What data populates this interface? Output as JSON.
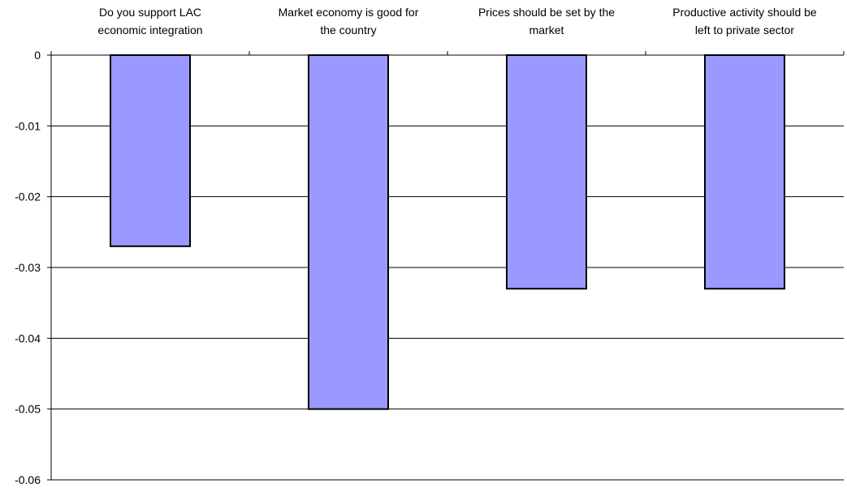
{
  "chart_data": {
    "type": "bar",
    "title": "",
    "xlabel": "",
    "ylabel": "",
    "categories": [
      [
        "Do you support LAC",
        "economic integration"
      ],
      [
        "Market economy is good for",
        "the country"
      ],
      [
        "Prices should be set by the",
        "market"
      ],
      [
        "Productive activity should be",
        "left to private sector"
      ]
    ],
    "values": [
      -0.027,
      -0.05,
      -0.033,
      -0.033
    ],
    "ylim": [
      -0.06,
      0
    ],
    "yticks": [
      0,
      -0.01,
      -0.02,
      -0.03,
      -0.04,
      -0.05,
      -0.06
    ],
    "ytick_labels": [
      "0",
      "-0.01",
      "-0.02",
      "-0.03",
      "-0.04",
      "-0.05",
      "-0.06"
    ],
    "x_tick_labels_position": "top",
    "grid": true,
    "legend": false,
    "colors": {
      "bar_fill": "#9999ff",
      "bar_stroke": "#000000",
      "grid": "#000000",
      "axis": "#000000"
    }
  }
}
